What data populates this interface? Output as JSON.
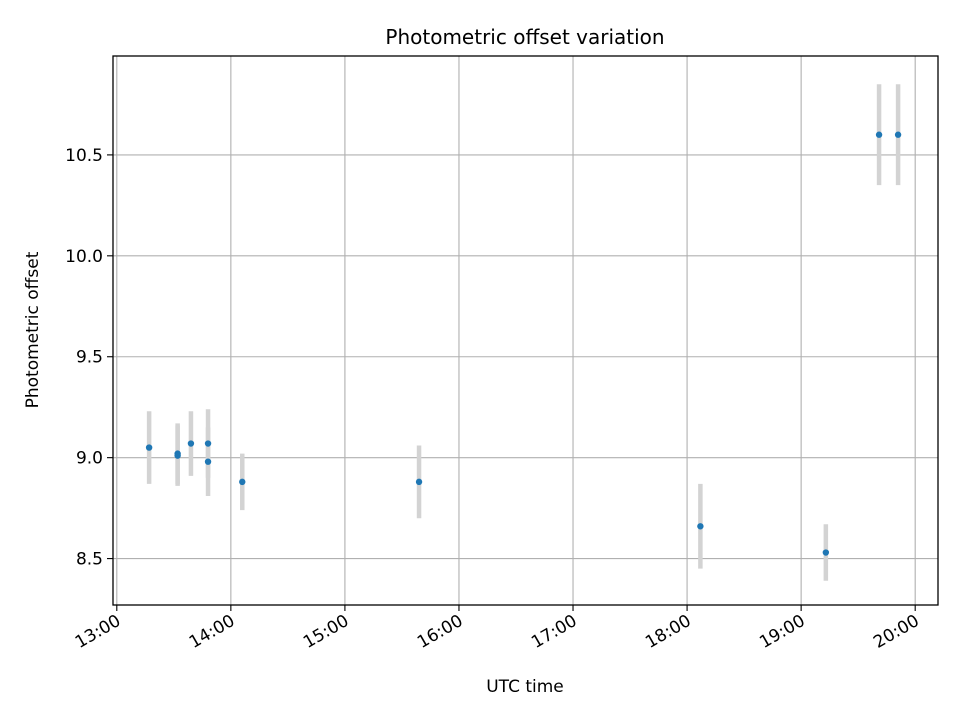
{
  "chart_data": {
    "type": "scatter",
    "title": "Photometric offset variation",
    "xlabel": "UTC time",
    "ylabel": "Photometric offset",
    "x_ticks": [
      "13:00",
      "14:00",
      "15:00",
      "16:00",
      "17:00",
      "18:00",
      "19:00",
      "20:00"
    ],
    "y_ticks": [
      "8.5",
      "9.0",
      "9.5",
      "10.0",
      "10.5"
    ],
    "xlim": [
      "12:58",
      "20:12"
    ],
    "ylim": [
      8.27,
      10.99
    ],
    "grid": true,
    "colors": {
      "point": "#1f77b4",
      "errorbar": "#d3d3d3",
      "grid": "#b0b0b0"
    },
    "points": [
      {
        "x": "13:17",
        "y": 9.05,
        "yerr": 0.18
      },
      {
        "x": "13:32",
        "y": 9.02,
        "yerr": 0.15
      },
      {
        "x": "13:32",
        "y": 9.01,
        "yerr": 0.15
      },
      {
        "x": "13:39",
        "y": 9.07,
        "yerr": 0.16
      },
      {
        "x": "13:48",
        "y": 9.07,
        "yerr": 0.17
      },
      {
        "x": "13:48",
        "y": 8.98,
        "yerr": 0.17
      },
      {
        "x": "14:06",
        "y": 8.88,
        "yerr": 0.14
      },
      {
        "x": "15:39",
        "y": 8.88,
        "yerr": 0.18
      },
      {
        "x": "18:07",
        "y": 8.66,
        "yerr": 0.21
      },
      {
        "x": "19:13",
        "y": 8.53,
        "yerr": 0.14
      },
      {
        "x": "19:41",
        "y": 10.6,
        "yerr": 0.25
      },
      {
        "x": "19:51",
        "y": 10.6,
        "yerr": 0.25
      }
    ]
  }
}
